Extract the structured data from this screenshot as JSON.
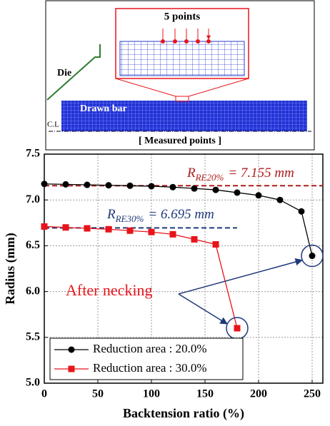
{
  "diagram": {
    "inset_title": "5 points",
    "die": "Die",
    "bar": "Drawn bar",
    "centerline": "C.L",
    "caption": "[ Measured points ]"
  },
  "chart_data": {
    "type": "line",
    "xlabel": "Backtension ratio (%)",
    "ylabel": "Radius (mm)",
    "xlim": [
      0,
      260
    ],
    "ylim": [
      5.0,
      7.5
    ],
    "xticks": [
      0,
      50,
      100,
      150,
      200,
      250
    ],
    "yticks": [
      {
        "value": 5.0,
        "label": "5.0"
      },
      5.5,
      {
        "value": 6.0,
        "label": "6.0"
      },
      6.5,
      {
        "value": 7.0,
        "label": "7.0"
      },
      7.5
    ],
    "grid": true,
    "legend": "lower left",
    "series": [
      {
        "name": "Reduction area : 20.0%",
        "color": "#000000",
        "marker": "circle",
        "x": [
          0,
          20,
          40,
          60,
          80,
          100,
          120,
          140,
          160,
          180,
          200,
          220,
          240,
          250
        ],
        "values": [
          7.175,
          7.17,
          7.165,
          7.16,
          7.155,
          7.15,
          7.14,
          7.125,
          7.11,
          7.08,
          7.05,
          7.0,
          6.875,
          6.39
        ]
      },
      {
        "name": "Reduction area : 30.0%",
        "color": "#e8141b",
        "marker": "square",
        "x": [
          0,
          20,
          40,
          60,
          80,
          100,
          120,
          140,
          160,
          180
        ],
        "values": [
          6.71,
          6.7,
          6.69,
          6.68,
          6.665,
          6.65,
          6.625,
          6.57,
          6.515,
          5.6
        ]
      }
    ],
    "reference_lines": [
      {
        "value": 7.155,
        "color": "#b01c1c",
        "symbol": "R",
        "subscript": "RE20%",
        "text": "= 7.155 mm"
      },
      {
        "value": 6.695,
        "color": "#1f3a7a",
        "symbol": "R",
        "subscript": "RE30%",
        "text": "= 6.695 mm"
      }
    ],
    "annotation": {
      "text": "After necking",
      "color": "#e8141b"
    }
  }
}
